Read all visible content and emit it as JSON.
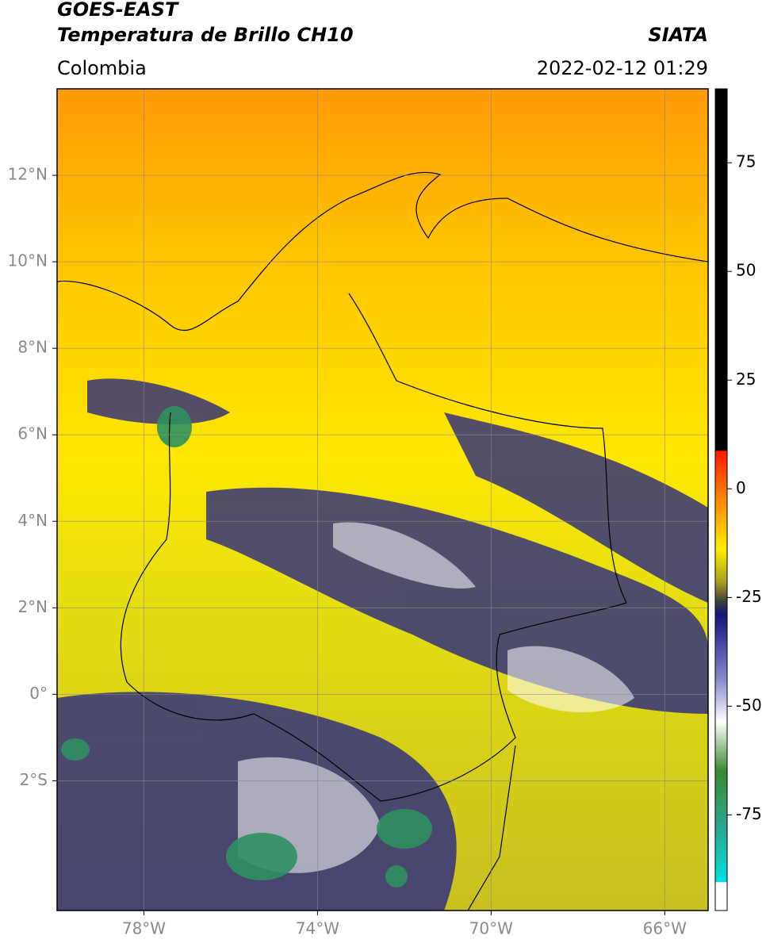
{
  "header": {
    "satellite": "GOES-EAST",
    "product": "Temperatura de Brillo CH10",
    "source": "SIATA",
    "region": "Colombia",
    "datetime": "2022-02-12 01:29"
  },
  "map": {
    "lonlim": [
      -80,
      -65
    ],
    "latlim": [
      -5,
      14
    ],
    "lon_ticks": [
      {
        "value": -78,
        "label": "78°W"
      },
      {
        "value": -74,
        "label": "74°W"
      },
      {
        "value": -70,
        "label": "70°W"
      },
      {
        "value": -66,
        "label": "66°W"
      }
    ],
    "lat_ticks": [
      {
        "value": 12,
        "label": "12°N"
      },
      {
        "value": 10,
        "label": "10°N"
      },
      {
        "value": 8,
        "label": "8°N"
      },
      {
        "value": 6,
        "label": "6°N"
      },
      {
        "value": 4,
        "label": "4°N"
      },
      {
        "value": 2,
        "label": "2°N"
      },
      {
        "value": 0,
        "label": "0°"
      },
      {
        "value": -2,
        "label": "2°S"
      }
    ]
  },
  "colorbar": {
    "lim": [
      -97,
      92
    ],
    "ticks": [
      75,
      50,
      25,
      0,
      -25,
      -50,
      -75
    ]
  }
}
